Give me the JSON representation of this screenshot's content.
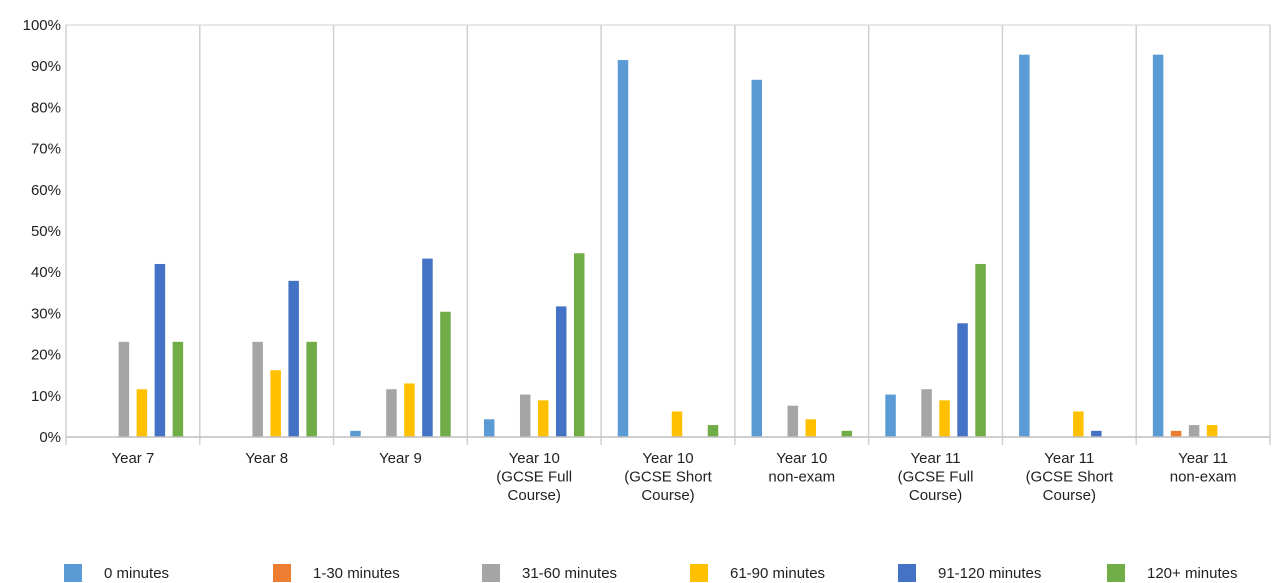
{
  "chart_data": {
    "type": "bar",
    "title": "",
    "xlabel": "",
    "ylabel": "",
    "ylim": [
      0,
      100
    ],
    "y_ticks": [
      "0%",
      "10%",
      "20%",
      "30%",
      "40%",
      "50%",
      "60%",
      "70%",
      "80%",
      "90%",
      "100%"
    ],
    "grid": "vertical-category-separators",
    "legend_position": "bottom",
    "categories": [
      [
        "Year 7"
      ],
      [
        "Year 8"
      ],
      [
        "Year 9"
      ],
      [
        "Year 10",
        "(GCSE Full",
        "Course)"
      ],
      [
        "Year 10",
        "(GCSE Short",
        "Course)"
      ],
      [
        "Year 10",
        "non-exam"
      ],
      [
        "Year 11",
        "(GCSE Full",
        "Course)"
      ],
      [
        "Year 11",
        "(GCSE Short",
        "Course)"
      ],
      [
        "Year 11",
        "non-exam"
      ]
    ],
    "series": [
      {
        "name": "0 minutes",
        "color": "#5b9bd5",
        "values": [
          0,
          0,
          1.5,
          4.3,
          91.5,
          86.7,
          10.3,
          92.8,
          92.8
        ]
      },
      {
        "name": "1-30 minutes",
        "color": "#ed7d31",
        "values": [
          0,
          0,
          0,
          0,
          0,
          0,
          0,
          0,
          1.5
        ]
      },
      {
        "name": "31-60 minutes",
        "color": "#a5a5a5",
        "values": [
          23.1,
          23.1,
          11.6,
          10.3,
          0,
          7.6,
          11.6,
          0,
          2.9
        ]
      },
      {
        "name": "61-90 minutes",
        "color": "#ffc000",
        "values": [
          11.6,
          16.2,
          13,
          8.9,
          6.2,
          4.3,
          8.9,
          6.2,
          2.9
        ]
      },
      {
        "name": "91-120 minutes",
        "color": "#4472c4",
        "values": [
          42,
          37.9,
          43.3,
          31.7,
          0,
          0,
          27.6,
          1.5,
          0
        ]
      },
      {
        "name": "120+ minutes",
        "color": "#70ad47",
        "values": [
          23.1,
          23.1,
          30.4,
          44.6,
          2.9,
          1.5,
          42,
          0,
          0
        ]
      }
    ]
  }
}
